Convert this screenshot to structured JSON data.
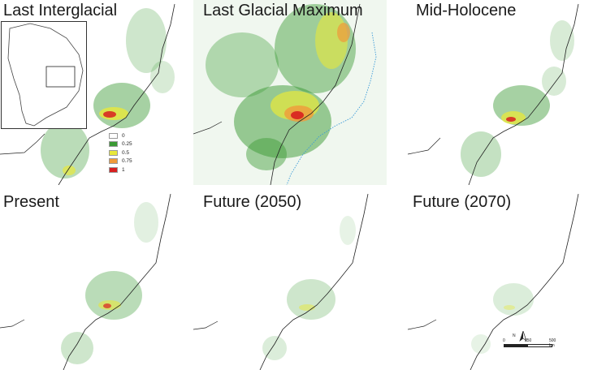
{
  "panels": [
    {
      "title": "Last Interglacial"
    },
    {
      "title": "Last Glacial Maximum"
    },
    {
      "title": "Mid-Holocene"
    },
    {
      "title": "Present"
    },
    {
      "title": "Future (2050)"
    },
    {
      "title": "Future (2070)"
    }
  ],
  "legend": {
    "items": [
      {
        "label": "0",
        "color": "#ffffff"
      },
      {
        "label": "0.25",
        "color": "#3a9a34"
      },
      {
        "label": "0.5",
        "color": "#e8e83a"
      },
      {
        "label": "0.75",
        "color": "#f09a3a"
      },
      {
        "label": "1",
        "color": "#d81f1f"
      }
    ]
  },
  "scale": {
    "labels": [
      "0",
      "250",
      "500 km"
    ]
  },
  "north_arrow": {
    "label": "N"
  }
}
